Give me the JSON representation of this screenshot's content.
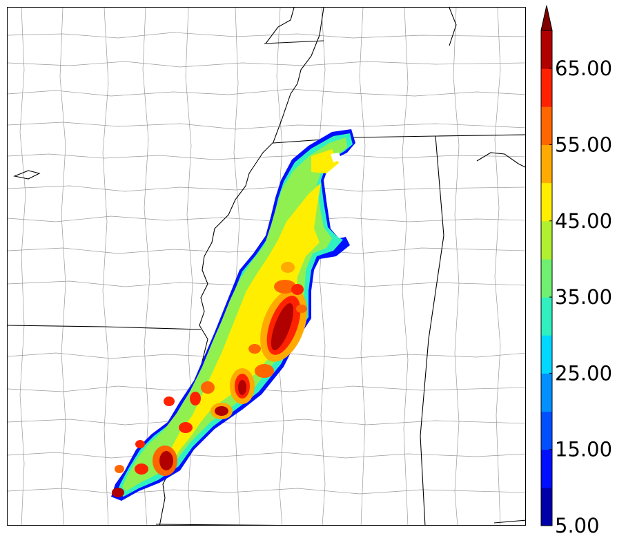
{
  "colorbar": {
    "labels": [
      "5.00",
      "15.00",
      "25.00",
      "35.00",
      "45.00",
      "55.00",
      "65.00"
    ],
    "levels": [
      5,
      10,
      15,
      20,
      25,
      30,
      35,
      40,
      45,
      50,
      55,
      60,
      65,
      70
    ],
    "colors": [
      "#0000aa",
      "#0010ff",
      "#0050ff",
      "#0090ff",
      "#00d8ff",
      "#30f0c0",
      "#70f070",
      "#b0f030",
      "#ffee00",
      "#ffaa00",
      "#ff6600",
      "#ff2200",
      "#b00000"
    ],
    "extend_color": "#800000"
  },
  "map": {
    "boundary_color": "#000000",
    "county_color": "#9a9a9a"
  }
}
